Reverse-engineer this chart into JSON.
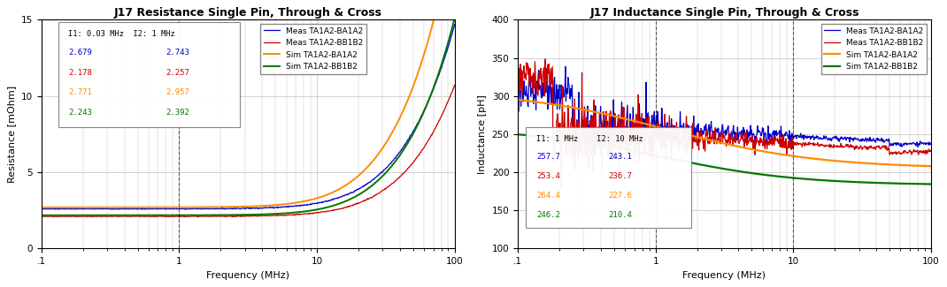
{
  "left_title": "J17 Resistance Single Pin, Through & Cross",
  "right_title": "J17 Inductance Single Pin, Through & Cross",
  "left_ylabel": "Resistance [mOhm]",
  "right_ylabel": "Inductance [pH]",
  "xlabel": "Frequency (MHz)",
  "colors": {
    "meas_BA": "#0000CC",
    "meas_BB": "#CC0000",
    "sim_BA": "#FF8C00",
    "sim_BB": "#007700"
  },
  "legend_labels": [
    "Meas TA1A2-BA1A2",
    "Meas TA1A2-BB1B2",
    "Sim TA1A2-BA1A2",
    "Sim TA1A2-BB1B2"
  ],
  "left_annotation_header": "I1: 0.03 MHz  I2: 1 MHz",
  "left_annotation_values": [
    [
      "2.679",
      "2.743"
    ],
    [
      "2.178",
      "2.257"
    ],
    [
      "2.771",
      "2.957"
    ],
    [
      "2.243",
      "2.392"
    ]
  ],
  "right_annotation_header": "I1: 1 MHz    I2: 10 MHz",
  "right_annotation_values": [
    [
      "257.7",
      "243.1"
    ],
    [
      "253.4",
      "236.7"
    ],
    [
      "264.4",
      "227.6"
    ],
    [
      "246.2",
      "210.4"
    ]
  ],
  "left_ylim": [
    0,
    15
  ],
  "left_yticks": [
    0,
    5,
    10,
    15
  ],
  "right_ylim": [
    100,
    400
  ],
  "right_yticks": [
    100,
    150,
    200,
    250,
    300,
    350,
    400
  ],
  "xlim": [
    0.1,
    100
  ],
  "background_color": "#FFFFFF",
  "grid_color": "#C0C0C0"
}
